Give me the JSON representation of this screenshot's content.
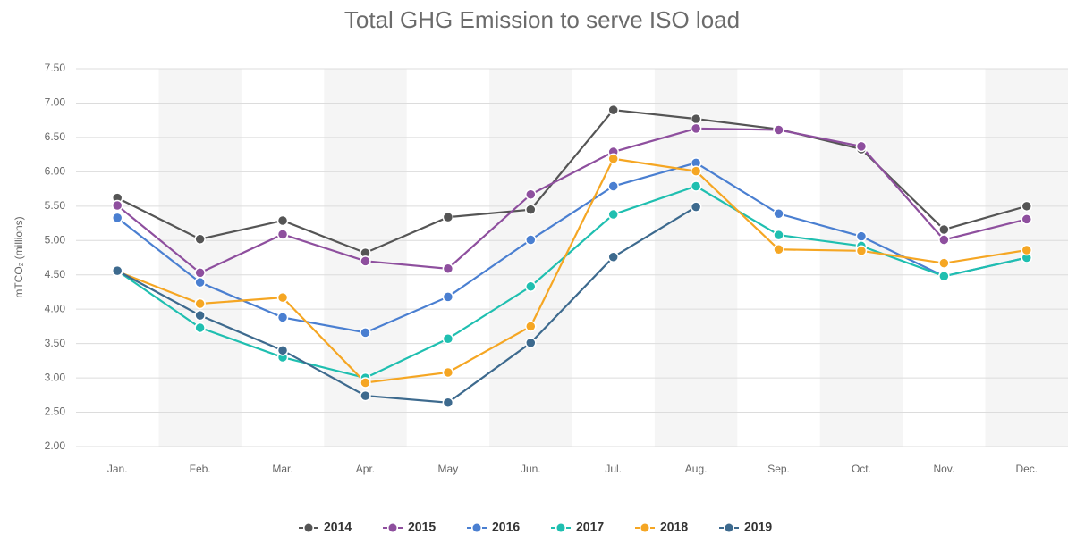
{
  "chart_data": {
    "type": "line",
    "title": "Total GHG Emission to serve ISO load",
    "y_label": "mTCO₂ (millions)",
    "categories": [
      "Jan.",
      "Feb.",
      "Mar.",
      "Apr.",
      "May",
      "Jun.",
      "Jul.",
      "Aug.",
      "Sep.",
      "Oct.",
      "Nov.",
      "Dec."
    ],
    "series": [
      {
        "name": "2014",
        "color": "#555555",
        "values": [
          5.62,
          5.02,
          5.29,
          4.82,
          5.34,
          5.45,
          6.9,
          6.77,
          6.62,
          6.33,
          5.16,
          5.5
        ]
      },
      {
        "name": "2015",
        "color": "#8e4f9e",
        "values": [
          5.51,
          4.53,
          5.09,
          4.7,
          4.59,
          5.67,
          6.29,
          6.63,
          6.61,
          6.37,
          5.01,
          5.31
        ]
      },
      {
        "name": "2016",
        "color": "#4a7fd1",
        "values": [
          5.33,
          4.39,
          3.88,
          3.66,
          4.18,
          5.01,
          5.79,
          6.13,
          5.39,
          5.06,
          4.48,
          4.75
        ]
      },
      {
        "name": "2017",
        "color": "#1fbfb0",
        "values": [
          4.56,
          3.73,
          3.3,
          3.0,
          3.57,
          4.33,
          5.38,
          5.79,
          5.08,
          4.92,
          4.48,
          4.75
        ]
      },
      {
        "name": "2018",
        "color": "#f5a623",
        "values": [
          4.55,
          4.08,
          4.17,
          2.93,
          3.08,
          3.75,
          6.19,
          6.01,
          4.87,
          4.85,
          4.67,
          4.86
        ]
      },
      {
        "name": "2019",
        "color": "#3d6a8e",
        "values": [
          4.56,
          3.91,
          3.4,
          2.74,
          2.64,
          3.51,
          4.76,
          5.49,
          null,
          null,
          null,
          null
        ]
      }
    ],
    "ylim": [
      2.0,
      7.5
    ],
    "yticks": [
      {
        "value": 2.0,
        "label": "2.00"
      },
      {
        "value": 2.5,
        "label": "2.50"
      },
      {
        "value": 3.0,
        "label": "3.00"
      },
      {
        "value": 3.5,
        "label": "3.50"
      },
      {
        "value": 4.0,
        "label": "4.00"
      },
      {
        "value": 4.5,
        "label": "4.50"
      },
      {
        "value": 5.0,
        "label": "5.00"
      },
      {
        "value": 5.5,
        "label": "5.50"
      },
      {
        "value": 6.0,
        "label": "6.00"
      },
      {
        "value": 6.5,
        "label": "6.50"
      },
      {
        "value": 7.0,
        "label": "7.00"
      },
      {
        "value": 7.5,
        "label": "7.50"
      }
    ],
    "grid": true,
    "legend": "bottom"
  }
}
